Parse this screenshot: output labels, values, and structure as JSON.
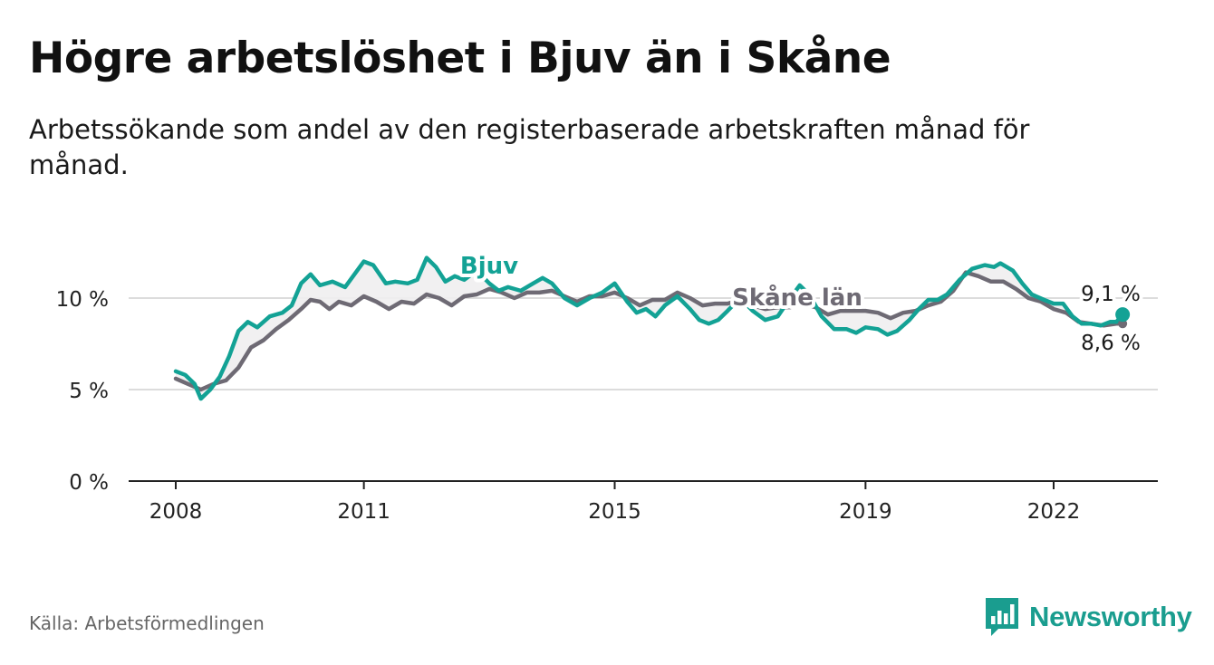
{
  "title": "Högre arbetslöshet i Bjuv än i Skåne",
  "subtitle": "Arbetssökande som andel av den registerbaserade arbetskraften månad för månad.",
  "source": "Källa: Arbetsförmedlingen",
  "brand": {
    "name": "Newsworthy",
    "icon": "newsworthy-logo-icon"
  },
  "colors": {
    "bjuv": "#13a295",
    "skane": "#6e6a74",
    "grid": "#dcdcdc",
    "axis": "#222222",
    "brand": "#1a9d8f"
  },
  "chart_data": {
    "type": "line",
    "title": "Högre arbetslöshet i Bjuv än i Skåne",
    "xlabel": "",
    "ylabel": "",
    "ylim": [
      0,
      12.5
    ],
    "yticks": [
      {
        "value": 0,
        "label": "0 %"
      },
      {
        "value": 5,
        "label": "5 %"
      },
      {
        "value": 10,
        "label": "10 %"
      }
    ],
    "xticks": [
      {
        "value": 2008,
        "label": "2008"
      },
      {
        "value": 2011,
        "label": "2011"
      },
      {
        "value": 2015,
        "label": "2015"
      },
      {
        "value": 2019,
        "label": "2019"
      },
      {
        "value": 2022,
        "label": "2022"
      }
    ],
    "xlim": [
      2007.3,
      2023.7
    ],
    "series": [
      {
        "name": "Bjuv",
        "end_label": "9,1 %",
        "points": [
          [
            2008.0,
            6.0
          ],
          [
            2008.15,
            5.8
          ],
          [
            2008.3,
            5.3
          ],
          [
            2008.4,
            4.5
          ],
          [
            2008.55,
            5.0
          ],
          [
            2008.7,
            5.7
          ],
          [
            2008.85,
            6.8
          ],
          [
            2009.0,
            8.2
          ],
          [
            2009.15,
            8.7
          ],
          [
            2009.3,
            8.4
          ],
          [
            2009.5,
            9.0
          ],
          [
            2009.7,
            9.2
          ],
          [
            2009.85,
            9.6
          ],
          [
            2010.0,
            10.8
          ],
          [
            2010.15,
            11.3
          ],
          [
            2010.3,
            10.7
          ],
          [
            2010.5,
            10.9
          ],
          [
            2010.7,
            10.6
          ],
          [
            2010.85,
            11.3
          ],
          [
            2011.0,
            12.0
          ],
          [
            2011.15,
            11.8
          ],
          [
            2011.35,
            10.8
          ],
          [
            2011.5,
            10.9
          ],
          [
            2011.7,
            10.8
          ],
          [
            2011.85,
            11.0
          ],
          [
            2012.0,
            12.2
          ],
          [
            2012.15,
            11.7
          ],
          [
            2012.3,
            10.9
          ],
          [
            2012.45,
            11.2
          ],
          [
            2012.6,
            11.0
          ],
          [
            2012.8,
            11.5
          ],
          [
            2013.0,
            10.8
          ],
          [
            2013.15,
            10.4
          ],
          [
            2013.3,
            10.6
          ],
          [
            2013.5,
            10.4
          ],
          [
            2013.7,
            10.8
          ],
          [
            2013.85,
            11.1
          ],
          [
            2014.0,
            10.8
          ],
          [
            2014.2,
            10.0
          ],
          [
            2014.4,
            9.6
          ],
          [
            2014.6,
            10.0
          ],
          [
            2014.8,
            10.3
          ],
          [
            2015.0,
            10.8
          ],
          [
            2015.2,
            9.8
          ],
          [
            2015.35,
            9.2
          ],
          [
            2015.5,
            9.4
          ],
          [
            2015.65,
            9.0
          ],
          [
            2015.8,
            9.6
          ],
          [
            2016.0,
            10.1
          ],
          [
            2016.2,
            9.4
          ],
          [
            2016.35,
            8.8
          ],
          [
            2016.5,
            8.6
          ],
          [
            2016.65,
            8.8
          ],
          [
            2016.8,
            9.3
          ],
          [
            2017.0,
            10.0
          ],
          [
            2017.2,
            9.3
          ],
          [
            2017.4,
            8.8
          ],
          [
            2017.6,
            9.0
          ],
          [
            2017.8,
            10.0
          ],
          [
            2017.95,
            10.7
          ],
          [
            2018.1,
            10.2
          ],
          [
            2018.3,
            9.0
          ],
          [
            2018.5,
            8.3
          ],
          [
            2018.7,
            8.3
          ],
          [
            2018.85,
            8.1
          ],
          [
            2019.0,
            8.4
          ],
          [
            2019.2,
            8.3
          ],
          [
            2019.35,
            8.0
          ],
          [
            2019.5,
            8.2
          ],
          [
            2019.7,
            8.8
          ],
          [
            2019.85,
            9.4
          ],
          [
            2020.0,
            9.9
          ],
          [
            2020.15,
            9.9
          ],
          [
            2020.3,
            10.2
          ],
          [
            2020.5,
            11.0
          ],
          [
            2020.7,
            11.6
          ],
          [
            2020.9,
            11.8
          ],
          [
            2021.05,
            11.7
          ],
          [
            2021.15,
            11.9
          ],
          [
            2021.35,
            11.5
          ],
          [
            2021.5,
            10.8
          ],
          [
            2021.65,
            10.2
          ],
          [
            2021.85,
            9.9
          ],
          [
            2022.0,
            9.7
          ],
          [
            2022.15,
            9.7
          ],
          [
            2022.3,
            9.0
          ],
          [
            2022.45,
            8.6
          ],
          [
            2022.6,
            8.6
          ],
          [
            2022.75,
            8.5
          ],
          [
            2022.9,
            8.7
          ],
          [
            2023.0,
            8.7
          ],
          [
            2023.1,
            9.1
          ]
        ]
      },
      {
        "name": "Skåne län",
        "end_label": "8,6 %",
        "points": [
          [
            2008.0,
            5.6
          ],
          [
            2008.2,
            5.3
          ],
          [
            2008.4,
            5.0
          ],
          [
            2008.6,
            5.3
          ],
          [
            2008.8,
            5.5
          ],
          [
            2009.0,
            6.2
          ],
          [
            2009.2,
            7.3
          ],
          [
            2009.4,
            7.7
          ],
          [
            2009.6,
            8.3
          ],
          [
            2009.8,
            8.8
          ],
          [
            2010.0,
            9.4
          ],
          [
            2010.15,
            9.9
          ],
          [
            2010.3,
            9.8
          ],
          [
            2010.45,
            9.4
          ],
          [
            2010.6,
            9.8
          ],
          [
            2010.8,
            9.6
          ],
          [
            2011.0,
            10.1
          ],
          [
            2011.2,
            9.8
          ],
          [
            2011.4,
            9.4
          ],
          [
            2011.6,
            9.8
          ],
          [
            2011.8,
            9.7
          ],
          [
            2012.0,
            10.2
          ],
          [
            2012.2,
            10.0
          ],
          [
            2012.4,
            9.6
          ],
          [
            2012.6,
            10.1
          ],
          [
            2012.8,
            10.2
          ],
          [
            2013.0,
            10.5
          ],
          [
            2013.2,
            10.3
          ],
          [
            2013.4,
            10.0
          ],
          [
            2013.6,
            10.3
          ],
          [
            2013.8,
            10.3
          ],
          [
            2014.0,
            10.4
          ],
          [
            2014.2,
            10.1
          ],
          [
            2014.4,
            9.8
          ],
          [
            2014.6,
            10.1
          ],
          [
            2014.8,
            10.1
          ],
          [
            2015.0,
            10.3
          ],
          [
            2015.2,
            10.0
          ],
          [
            2015.4,
            9.6
          ],
          [
            2015.6,
            9.9
          ],
          [
            2015.8,
            9.9
          ],
          [
            2016.0,
            10.3
          ],
          [
            2016.2,
            10.0
          ],
          [
            2016.4,
            9.6
          ],
          [
            2016.6,
            9.7
          ],
          [
            2016.8,
            9.7
          ],
          [
            2017.0,
            9.9
          ],
          [
            2017.2,
            9.6
          ],
          [
            2017.4,
            9.4
          ],
          [
            2017.6,
            9.5
          ],
          [
            2017.8,
            9.5
          ],
          [
            2018.0,
            9.7
          ],
          [
            2018.2,
            9.5
          ],
          [
            2018.4,
            9.1
          ],
          [
            2018.6,
            9.3
          ],
          [
            2018.8,
            9.3
          ],
          [
            2019.0,
            9.3
          ],
          [
            2019.2,
            9.2
          ],
          [
            2019.4,
            8.9
          ],
          [
            2019.6,
            9.2
          ],
          [
            2019.8,
            9.3
          ],
          [
            2020.0,
            9.6
          ],
          [
            2020.2,
            9.8
          ],
          [
            2020.4,
            10.4
          ],
          [
            2020.6,
            11.4
          ],
          [
            2020.8,
            11.2
          ],
          [
            2021.0,
            10.9
          ],
          [
            2021.2,
            10.9
          ],
          [
            2021.4,
            10.5
          ],
          [
            2021.6,
            10.0
          ],
          [
            2021.8,
            9.8
          ],
          [
            2022.0,
            9.4
          ],
          [
            2022.2,
            9.2
          ],
          [
            2022.4,
            8.7
          ],
          [
            2022.6,
            8.6
          ],
          [
            2022.8,
            8.5
          ],
          [
            2023.0,
            8.6
          ],
          [
            2023.1,
            8.6
          ]
        ]
      }
    ],
    "series_labels": [
      "Bjuv",
      "Skåne län"
    ]
  }
}
